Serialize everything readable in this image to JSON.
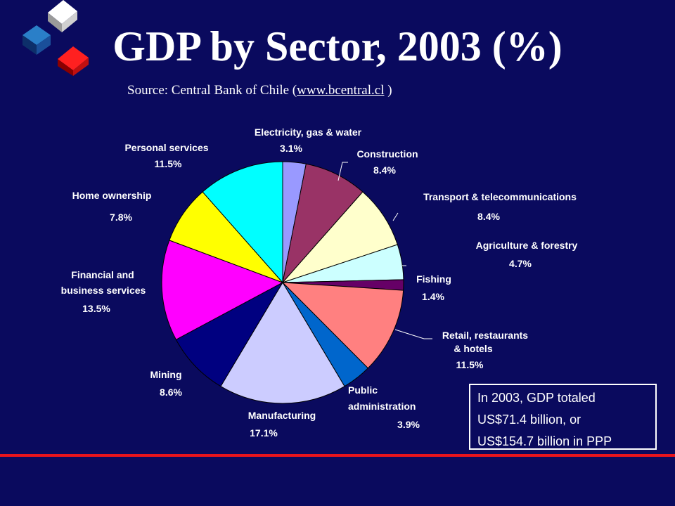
{
  "title": "GDP by Sector, 2003 (%)",
  "source": {
    "prefix": "Source: Central Bank of Chile (",
    "link": "www.bcentral.cl",
    "suffix": " )"
  },
  "note": {
    "line1": "In 2003, GDP totaled",
    "line2": "US$71.4 billion, or",
    "line3": "US$154.7 billion in PPP"
  },
  "chart_data": {
    "type": "pie",
    "title": "GDP by Sector, 2003 (%)",
    "slices": [
      {
        "label": [
          "Electricity, gas & water"
        ],
        "value": 3.1,
        "value_label": "3.1%",
        "color": "#9999ff"
      },
      {
        "label": [
          "Construction"
        ],
        "value": 8.4,
        "value_label": "8.4%",
        "color": "#993366"
      },
      {
        "label": [
          "Transport & telecommunications"
        ],
        "value": 8.4,
        "value_label": "8.4%",
        "color": "#ffffcc"
      },
      {
        "label": [
          "Agriculture & forestry"
        ],
        "value": 4.7,
        "value_label": "4.7%",
        "color": "#ccffff"
      },
      {
        "label": [
          "Fishing"
        ],
        "value": 1.4,
        "value_label": "1.4%",
        "color": "#660066"
      },
      {
        "label": [
          "Retail, restaurants",
          "& hotels"
        ],
        "value": 11.5,
        "value_label": "11.5%",
        "color": "#ff8080"
      },
      {
        "label": [
          "Public",
          "administration"
        ],
        "value": 3.9,
        "value_label": "3.9%",
        "color": "#0066cc"
      },
      {
        "label": [
          "Manufacturing"
        ],
        "value": 17.1,
        "value_label": "17.1%",
        "color": "#ccccff"
      },
      {
        "label": [
          "Mining"
        ],
        "value": 8.6,
        "value_label": "8.6%",
        "color": "#000080"
      },
      {
        "label": [
          "Financial and",
          "business services"
        ],
        "value": 13.5,
        "value_label": "13.5%",
        "color": "#ff00ff"
      },
      {
        "label": [
          "Home ownership"
        ],
        "value": 7.8,
        "value_label": "7.8%",
        "color": "#ffff00"
      },
      {
        "label": [
          "Personal services"
        ],
        "value": 11.5,
        "value_label": "11.5%",
        "color": "#00ffff"
      }
    ]
  }
}
